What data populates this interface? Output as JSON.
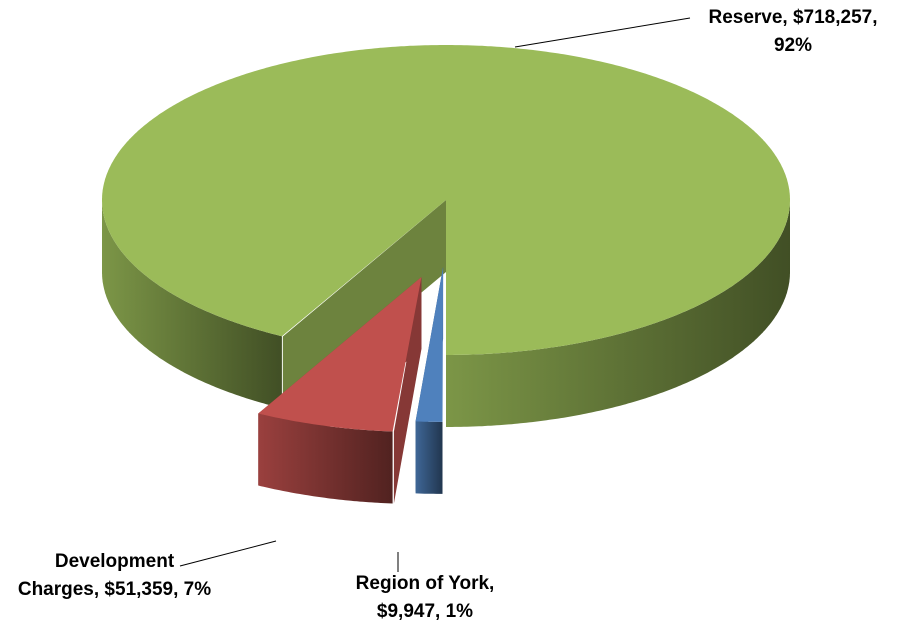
{
  "chart_data": {
    "type": "pie3d",
    "values": [
      718257,
      51359,
      9947
    ],
    "value_labels": [
      "Reserve, $718,257, 92%",
      "Development Charges, $51,359, 7%",
      "Region of York, $9,947, 1%"
    ],
    "colors": [
      "#9bbb59",
      "#c0504d",
      "#4f81bd"
    ]
  }
}
